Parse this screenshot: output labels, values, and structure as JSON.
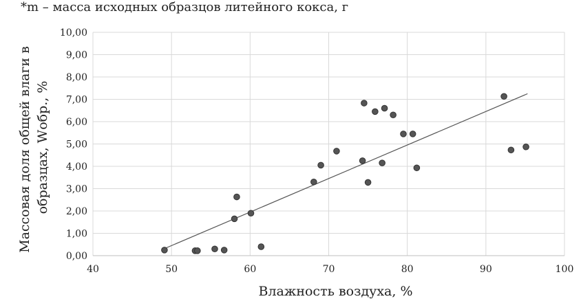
{
  "note": "*m – масса исходных образцов литейного кокса, г",
  "chart_data": {
    "type": "scatter",
    "title": "",
    "xlabel": "Влажность воздуха, %",
    "ylabel_lines": [
      "Массовая доля общей влаги в",
      "образцах, Wобр., %"
    ],
    "xlim": [
      40,
      100
    ],
    "ylim": [
      0,
      10
    ],
    "xticks": [
      "40",
      "50",
      "60",
      "70",
      "80",
      "90",
      "100"
    ],
    "yticks": [
      "0,00",
      "1,00",
      "2,00",
      "3,00",
      "4,00",
      "5,00",
      "6,00",
      "7,00",
      "8,00",
      "9,00",
      "10,00"
    ],
    "grid": true,
    "points": [
      {
        "x": 49.1,
        "y": 0.25
      },
      {
        "x": 53.0,
        "y": 0.22
      },
      {
        "x": 53.3,
        "y": 0.22
      },
      {
        "x": 55.5,
        "y": 0.3
      },
      {
        "x": 56.7,
        "y": 0.25
      },
      {
        "x": 58.0,
        "y": 1.65
      },
      {
        "x": 58.3,
        "y": 2.63
      },
      {
        "x": 60.1,
        "y": 1.9
      },
      {
        "x": 61.4,
        "y": 0.4
      },
      {
        "x": 68.1,
        "y": 3.3
      },
      {
        "x": 69.0,
        "y": 4.05
      },
      {
        "x": 71.0,
        "y": 4.68
      },
      {
        "x": 74.3,
        "y": 4.25
      },
      {
        "x": 74.5,
        "y": 6.83
      },
      {
        "x": 75.0,
        "y": 3.28
      },
      {
        "x": 75.9,
        "y": 6.45
      },
      {
        "x": 76.8,
        "y": 4.15
      },
      {
        "x": 77.1,
        "y": 6.6
      },
      {
        "x": 78.2,
        "y": 6.3
      },
      {
        "x": 79.5,
        "y": 5.45
      },
      {
        "x": 80.7,
        "y": 5.45
      },
      {
        "x": 81.2,
        "y": 3.93
      },
      {
        "x": 92.3,
        "y": 7.13
      },
      {
        "x": 93.2,
        "y": 4.73
      },
      {
        "x": 95.1,
        "y": 4.87
      }
    ],
    "trendline": {
      "x": [
        49.0,
        95.3
      ],
      "y": [
        0.3,
        7.25
      ]
    },
    "colors": {
      "marker": "#555555",
      "marker_edge": "#333333",
      "line": "#555555",
      "grid": "#d9d9d9"
    }
  }
}
